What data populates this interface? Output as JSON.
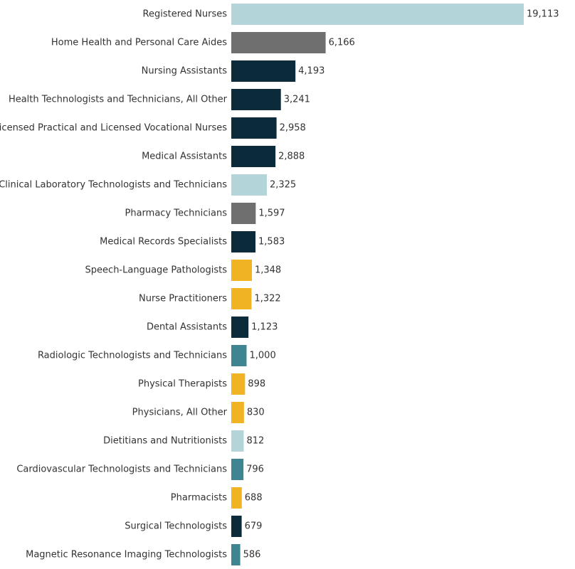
{
  "chart_data": {
    "type": "bar",
    "orientation": "horizontal",
    "title": "",
    "xlabel": "",
    "ylabel": "",
    "xlim": [
      0,
      20000
    ],
    "grid": false,
    "colors": {
      "light-blue": "#b3d4d9",
      "gray": "#6f6f6f",
      "navy": "#0b2a3a",
      "gold": "#f0b323",
      "teal": "#3f8591"
    },
    "bars": [
      {
        "label": "Registered Nurses",
        "value": 19113,
        "display": "19,113",
        "color": "#b3d4d9"
      },
      {
        "label": "Home Health and Personal Care Aides",
        "value": 6166,
        "display": "6,166",
        "color": "#6f6f6f"
      },
      {
        "label": "Nursing Assistants",
        "value": 4193,
        "display": "4,193",
        "color": "#0b2a3a"
      },
      {
        "label": "Health Technologists and Technicians, All Other",
        "value": 3241,
        "display": "3,241",
        "color": "#0b2a3a"
      },
      {
        "label": "Licensed Practical and Licensed Vocational Nurses",
        "value": 2958,
        "display": "2,958",
        "color": "#0b2a3a"
      },
      {
        "label": "Medical Assistants",
        "value": 2888,
        "display": "2,888",
        "color": "#0b2a3a"
      },
      {
        "label": "Clinical Laboratory Technologists and Technicians",
        "value": 2325,
        "display": "2,325",
        "color": "#b3d4d9"
      },
      {
        "label": "Pharmacy Technicians",
        "value": 1597,
        "display": "1,597",
        "color": "#6f6f6f"
      },
      {
        "label": "Medical Records Specialists",
        "value": 1583,
        "display": "1,583",
        "color": "#0b2a3a"
      },
      {
        "label": "Speech-Language Pathologists",
        "value": 1348,
        "display": "1,348",
        "color": "#f0b323"
      },
      {
        "label": "Nurse Practitioners",
        "value": 1322,
        "display": "1,322",
        "color": "#f0b323"
      },
      {
        "label": "Dental Assistants",
        "value": 1123,
        "display": "1,123",
        "color": "#0b2a3a"
      },
      {
        "label": "Radiologic Technologists and Technicians",
        "value": 1000,
        "display": "1,000",
        "color": "#3f8591"
      },
      {
        "label": "Physical Therapists",
        "value": 898,
        "display": "898",
        "color": "#f0b323"
      },
      {
        "label": "Physicians, All Other",
        "value": 830,
        "display": "830",
        "color": "#f0b323"
      },
      {
        "label": "Dietitians and Nutritionists",
        "value": 812,
        "display": "812",
        "color": "#b3d4d9"
      },
      {
        "label": "Cardiovascular Technologists and Technicians",
        "value": 796,
        "display": "796",
        "color": "#3f8591"
      },
      {
        "label": "Pharmacists",
        "value": 688,
        "display": "688",
        "color": "#f0b323"
      },
      {
        "label": "Surgical Technologists",
        "value": 679,
        "display": "679",
        "color": "#0b2a3a"
      },
      {
        "label": "Magnetic Resonance Imaging Technologists",
        "value": 586,
        "display": "586",
        "color": "#3f8591"
      }
    ]
  }
}
